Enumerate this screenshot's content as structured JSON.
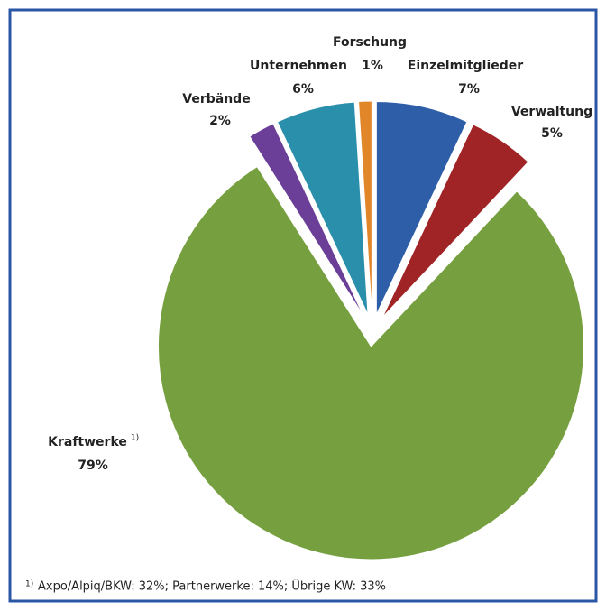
{
  "chart_data": {
    "type": "pie",
    "categories": [
      "Einzelmitglieder",
      "Verwaltung",
      "Kraftwerke",
      "Verbände",
      "Unternehmen",
      "Forschung"
    ],
    "values": [
      7,
      5,
      79,
      2,
      6,
      1
    ],
    "value_labels": [
      "7%",
      "5%",
      "79%",
      "2%",
      "6%",
      "1%"
    ],
    "colors": [
      "#2e5ea8",
      "#a02426",
      "#76a03f",
      "#6b3f98",
      "#2a8fab",
      "#e2862a"
    ],
    "category_notes": {
      "2": "1)"
    },
    "footnote": {
      "marker": "1)",
      "text": "Axpo/Alpiq/BKW: 32%; Partnerwerke: 14%; Übrige KW: 33%"
    }
  }
}
